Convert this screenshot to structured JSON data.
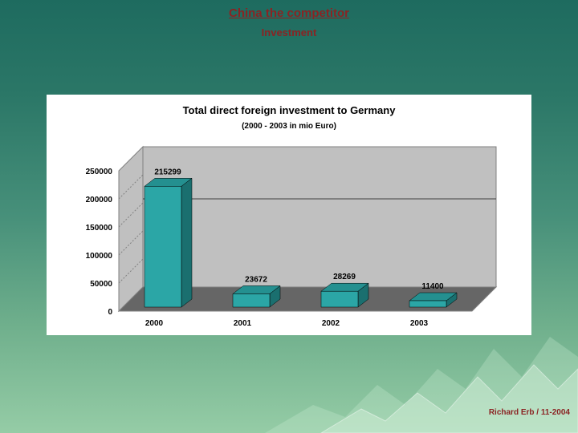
{
  "slide": {
    "title": "China the competitor",
    "subtitle": "Investment",
    "footer": "Richard Erb / 11-2004"
  },
  "colors": {
    "title_text": "#8B2323",
    "chart_background": "#FFFFFF",
    "wall": "#C0C0C0",
    "wall_edge": "#808080",
    "floor": "#666666",
    "bar_front": "#2BA6A6",
    "bar_top": "#249090",
    "bar_side": "#1A6F6F",
    "background_top": "#1E6B5F",
    "background_bottom": "#95CCA6"
  },
  "chart_data": {
    "type": "bar",
    "style": "3d-column",
    "title": "Total direct foreign investment to Germany",
    "subtitle": "(2000 - 2003 in mio Euro)",
    "categories": [
      "2000",
      "2001",
      "2002",
      "2003"
    ],
    "values": [
      215299,
      23672,
      28269,
      11400
    ],
    "data_labels": [
      "215299",
      "23672",
      "28269",
      "11400"
    ],
    "xlabel": "",
    "ylabel": "",
    "ylim": [
      0,
      250000
    ],
    "yticks": [
      0,
      50000,
      100000,
      150000,
      200000,
      250000
    ],
    "gridlines": [
      200000
    ],
    "legend": "none",
    "grid": "partial"
  }
}
